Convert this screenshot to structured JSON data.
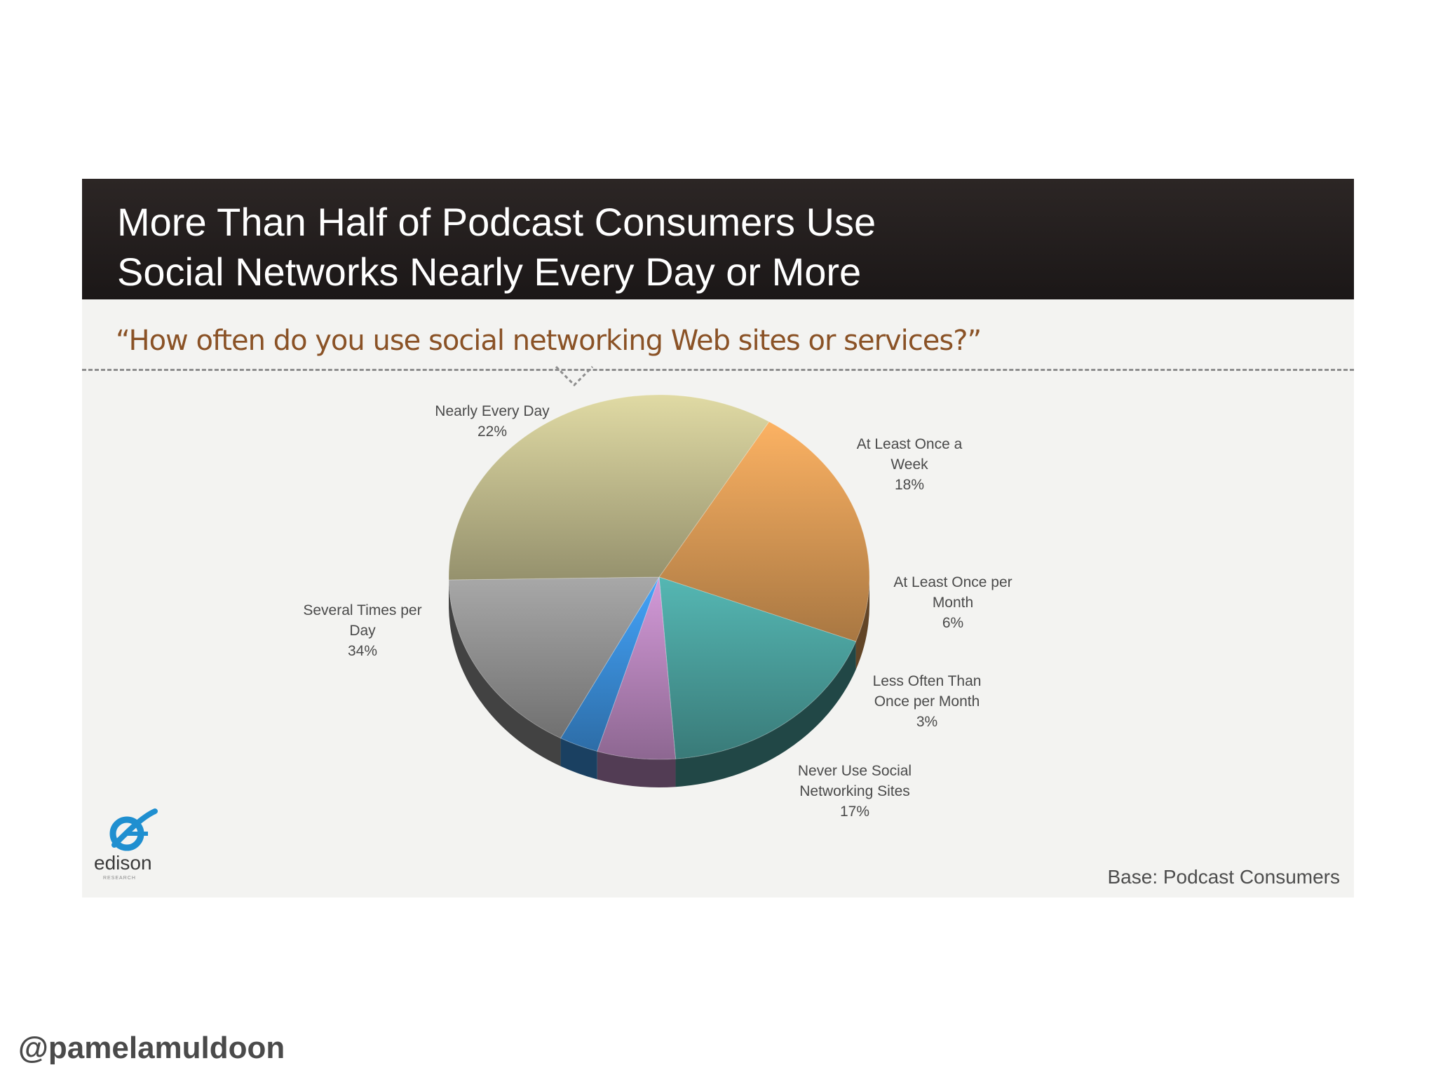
{
  "slide": {
    "title_line1": "More Than Half of Podcast Consumers Use",
    "title_line2": "Social Networks Nearly Every Day or More",
    "question": "“How often do you use social networking Web sites or services?”",
    "base_note": "Base: Podcast Consumers",
    "logo_text": "edison",
    "logo_subtext": "RESEARCH"
  },
  "handle": "@pamelamuldoon",
  "colors": {
    "title_bar": "#211c1b",
    "question_text": "#8a5226",
    "logo_blue": "#1f8fd0"
  },
  "chart_data": {
    "type": "pie",
    "title": "More Than Half of Podcast Consumers Use Social Networks Nearly Every Day or More",
    "subtitle": "“How often do you use social networking Web sites or services?”",
    "start_slice": "Nearly Every Day",
    "direction": "clockwise",
    "slices": [
      {
        "label_lines": [
          "Nearly Every Day",
          "22%"
        ],
        "label": "Nearly Every Day",
        "value": 22,
        "color": "#e9a55c"
      },
      {
        "label_lines": [
          "At Least Once a",
          "Week",
          "18%"
        ],
        "label": "At Least Once a Week",
        "value": 18,
        "color": "#4fa9a6"
      },
      {
        "label_lines": [
          "At Least Once per",
          "Month",
          "6%"
        ],
        "label": "At Least Once per Month",
        "value": 6,
        "color": "#c48fc9"
      },
      {
        "label_lines": [
          "Less Often Than",
          "Once per Month",
          "3%"
        ],
        "label": "Less Often Than Once per Month",
        "value": 3,
        "color": "#3f98e8"
      },
      {
        "label_lines": [
          "Never Use Social",
          "Networking Sites",
          "17%"
        ],
        "label": "Never Use Social Networking Sites",
        "value": 17,
        "color": "#9c9c9c"
      },
      {
        "label_lines": [
          "Several Times per",
          "Day",
          "34%"
        ],
        "label": "Several Times per Day",
        "value": 34,
        "color": "#cfca98"
      }
    ],
    "note": "Base: Podcast Consumers"
  }
}
